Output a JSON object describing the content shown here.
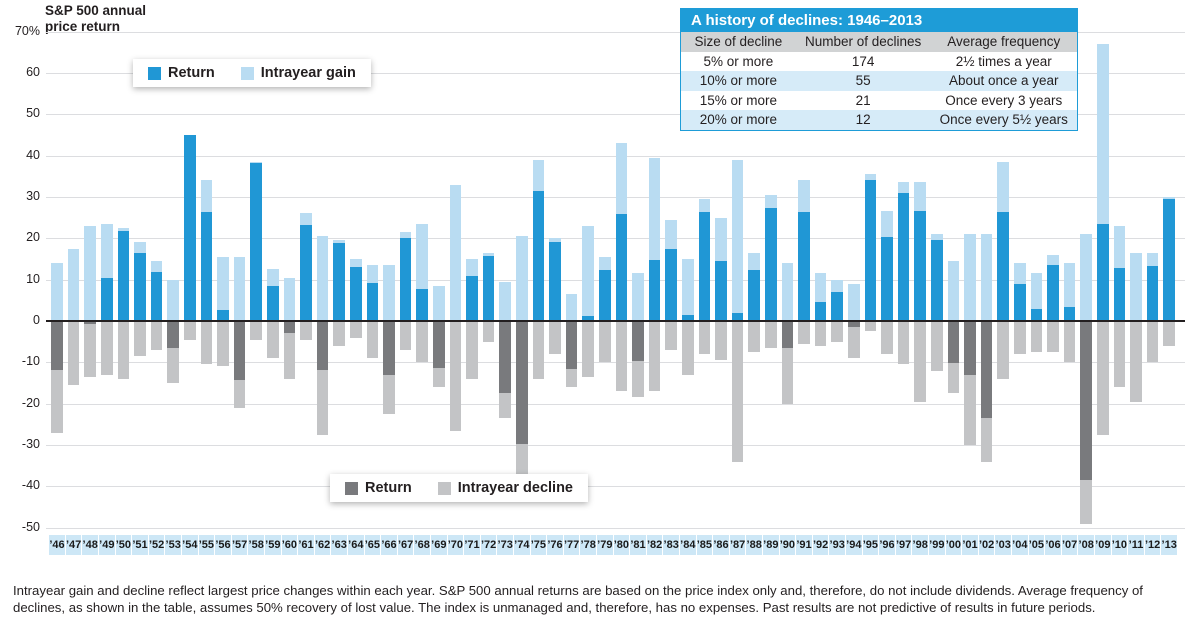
{
  "title_line1": "S&P 500 annual",
  "title_line2": "price return",
  "legend_top": {
    "return_label": "Return",
    "gain_label": "Intrayear gain"
  },
  "legend_bottom": {
    "return_label": "Return",
    "decline_label": "Intrayear decline"
  },
  "table": {
    "title": "A history of declines: 1946–2013",
    "headers": [
      "Size of decline",
      "Number of declines",
      "Average frequency"
    ],
    "rows": [
      [
        "5% or more",
        "174",
        "2½ times a year"
      ],
      [
        "10% or more",
        "55",
        "About once a year"
      ],
      [
        "15% or more",
        "21",
        "Once every 3 years"
      ],
      [
        "20% or more",
        "12",
        "Once every 5½ years"
      ]
    ]
  },
  "footnote": {
    "line1": "Intrayear gain and decline reflect largest price changes within each year. S&P 500 annual returns are based on the price index only and, therefore, do not include dividends. Average frequency of",
    "line2": "declines, as shown in the table, assumes 50% recovery of lost value. The index is unmanaged and, therefore, has no expenses. Past results are not predictive of results in future periods."
  },
  "colors": {
    "return_positive": "#2097d5",
    "intrayear_gain": "#b9dcf2",
    "return_negative": "#797a7d",
    "intrayear_decline": "#c3c4c6",
    "x_label_bg": "#cde7f6",
    "table_title_bg": "#1e9cd7",
    "table_header_bg": "#d1d3d4",
    "table_alt_row_bg": "#d6ebf8",
    "grid": "#dcdde0",
    "text": "#231f20"
  },
  "chart_data": {
    "type": "bar",
    "title": "S&P 500 annual price return",
    "xlabel": "",
    "ylabel": "S&P 500 annual price return (%)",
    "ylim": [
      -50,
      70
    ],
    "grid": true,
    "legend_position": "top-left and bottom-left, boxed",
    "y_ticks": [
      {
        "label": "70%",
        "value": 70
      },
      {
        "label": "60",
        "value": 60
      },
      {
        "label": "50",
        "value": 50
      },
      {
        "label": "40",
        "value": 40
      },
      {
        "label": "30",
        "value": 30
      },
      {
        "label": "20",
        "value": 20
      },
      {
        "label": "10",
        "value": 10
      },
      {
        "label": "0",
        "value": 0
      },
      {
        "label": "-10",
        "value": -10
      },
      {
        "label": "-20",
        "value": -20
      },
      {
        "label": "-30",
        "value": -30
      },
      {
        "label": "-40",
        "value": -40
      },
      {
        "label": "-50",
        "value": -50
      }
    ],
    "categories": [
      "’46",
      "’47",
      "’48",
      "’49",
      "’50",
      "’51",
      "’52",
      "’53",
      "’54",
      "’55",
      "’56",
      "’57",
      "’58",
      "’59",
      "’60",
      "’61",
      "’62",
      "’63",
      "’64",
      "’65",
      "’66",
      "’67",
      "’68",
      "’69",
      "’70",
      "’71",
      "’72",
      "’73",
      "’74",
      "’75",
      "’76",
      "’77",
      "’78",
      "’79",
      "’80",
      "’81",
      "’82",
      "’83",
      "’84",
      "’85",
      "’86",
      "’87",
      "’88",
      "’89",
      "’90",
      "’91",
      "’92",
      "’93",
      "’94",
      "’95",
      "’96",
      "’97",
      "’98",
      "’99",
      "’00",
      "’01",
      "’02",
      "’03",
      "’04",
      "’05",
      "’06",
      "’07",
      "’08",
      "’09",
      "’10",
      "’11",
      "’12",
      "’13"
    ],
    "series": [
      {
        "name": "Return",
        "values": [
          -11.9,
          0.0,
          -0.7,
          10.3,
          21.8,
          16.5,
          11.8,
          -6.6,
          45.0,
          26.4,
          2.6,
          -14.3,
          38.1,
          8.5,
          -3.0,
          23.1,
          -11.8,
          18.9,
          13.0,
          9.1,
          -13.1,
          20.1,
          7.7,
          -11.4,
          0.1,
          10.8,
          15.6,
          -17.4,
          -29.7,
          31.5,
          19.1,
          -11.5,
          1.1,
          12.3,
          25.8,
          -9.7,
          14.8,
          17.3,
          1.4,
          26.3,
          14.6,
          2.0,
          12.4,
          27.3,
          -6.6,
          26.3,
          4.5,
          7.1,
          -1.5,
          34.1,
          20.3,
          31.0,
          26.7,
          19.5,
          -10.1,
          -13.0,
          -23.4,
          26.4,
          9.0,
          3.0,
          13.6,
          3.5,
          -38.5,
          23.5,
          12.8,
          0.0,
          13.4,
          29.6
        ]
      },
      {
        "name": "Intrayear gain",
        "values": [
          14,
          17.5,
          23,
          23.5,
          22.5,
          19,
          14.5,
          10,
          45,
          34,
          15.5,
          15.5,
          38.5,
          12.5,
          10.5,
          26,
          20.5,
          19.5,
          15,
          13.5,
          13.5,
          21.5,
          23.5,
          8.5,
          33,
          15,
          16.5,
          9.5,
          20.5,
          39,
          20,
          6.5,
          23,
          15.5,
          43,
          11.5,
          39.5,
          24.5,
          15,
          29.5,
          25,
          39,
          16.5,
          30.5,
          14,
          34,
          11.5,
          10,
          9,
          35.5,
          26.5,
          33.5,
          33.5,
          21,
          14.5,
          21,
          21,
          38.5,
          14,
          11.5,
          16,
          14,
          21,
          67,
          23,
          16.5,
          16.5,
          30
        ]
      },
      {
        "name": "Intrayear decline",
        "values": [
          -27,
          -15.5,
          -13.5,
          -13,
          -14,
          -8.5,
          -7,
          -15,
          -4.5,
          -10.5,
          -11,
          -21,
          -4.5,
          -9,
          -14,
          -4.5,
          -27.5,
          -6,
          -4,
          -9,
          -22.5,
          -7,
          -10,
          -16,
          -26.5,
          -14,
          -5,
          -23.5,
          -38,
          -14,
          -8,
          -16,
          -13.5,
          -10,
          -17,
          -18.5,
          -17,
          -7,
          -13,
          -8,
          -9.5,
          -34,
          -7.5,
          -6.5,
          -20,
          -5.5,
          -6,
          -5,
          -9,
          -2.5,
          -8,
          -10.5,
          -19.5,
          -12,
          -17.5,
          -30,
          -34,
          -14,
          -8,
          -7.5,
          -7.5,
          -10,
          -49,
          -27.5,
          -16,
          -19.5,
          -10,
          -6
        ]
      }
    ]
  }
}
